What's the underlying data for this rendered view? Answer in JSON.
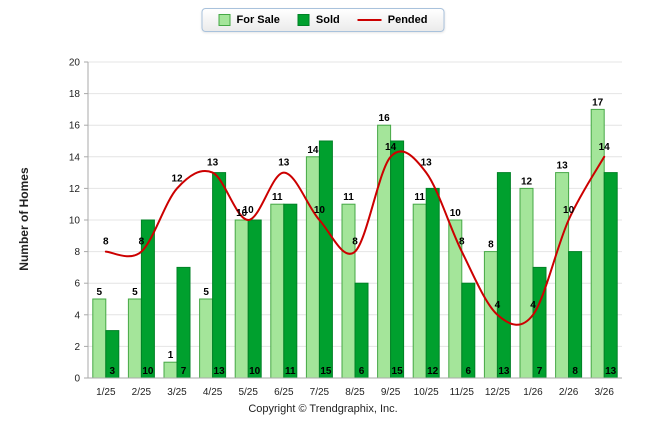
{
  "chart_data": {
    "type": "bar",
    "categories": [
      "1/25",
      "2/25",
      "3/25",
      "4/25",
      "5/25",
      "6/25",
      "7/25",
      "8/25",
      "9/25",
      "10/25",
      "11/25",
      "12/25",
      "1/26",
      "2/26",
      "3/26"
    ],
    "series": [
      {
        "name": "For Sale",
        "type": "bar",
        "color": "#a4e59a",
        "border": "#46a846",
        "values": [
          5,
          5,
          1,
          5,
          10,
          11,
          14,
          11,
          16,
          11,
          10,
          8,
          12,
          13,
          17
        ]
      },
      {
        "name": "Sold",
        "type": "bar",
        "color": "#00a02e",
        "border": "#008226",
        "values": [
          3,
          10,
          7,
          13,
          10,
          11,
          15,
          6,
          15,
          12,
          6,
          13,
          7,
          8,
          13
        ]
      },
      {
        "name": "Pended",
        "type": "line",
        "color": "#cc0000",
        "values": [
          8,
          8,
          12,
          13,
          10,
          13,
          10,
          8,
          14,
          13,
          8,
          4,
          4,
          10,
          14
        ]
      }
    ],
    "title": "",
    "xlabel": "",
    "ylabel": "Number of Homes",
    "ylim": [
      0,
      20
    ],
    "ytick_step": 2,
    "grid": true,
    "legend_position": "top-center",
    "axis_color": "#aaaaaa",
    "grid_color": "#e4e4e4"
  },
  "footer": {
    "copyright": "Copyright © Trendgraphix, Inc."
  }
}
